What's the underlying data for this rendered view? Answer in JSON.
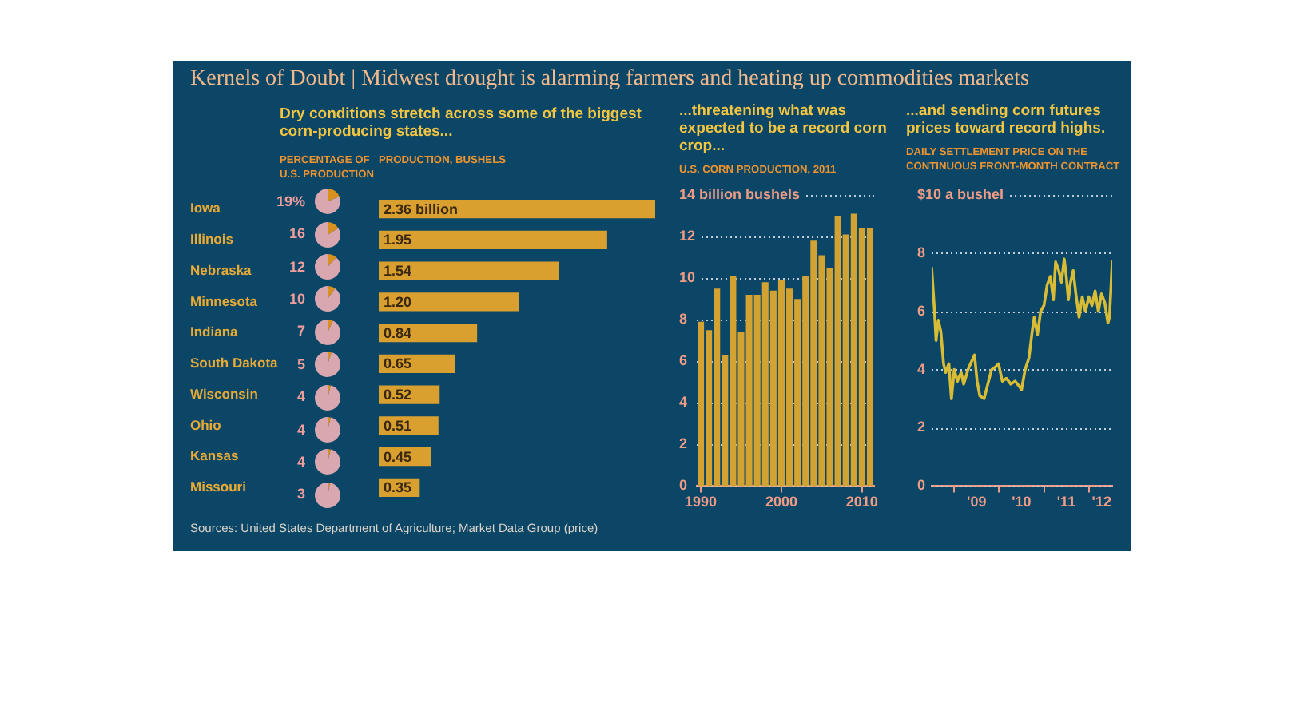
{
  "chart_data": [
    {
      "type": "bar",
      "orientation": "horizontal",
      "title": "Kernels of Doubt | Midwest drought is alarming farmers and heating up commodities markets",
      "subtitle": "Dry conditions stretch across some of the biggest corn-producing states...",
      "xlabel": "PRODUCTION, BUSHELS",
      "categories": [
        "Iowa",
        "Illinois",
        "Nebraska",
        "Minnesota",
        "Indiana",
        "South Dakota",
        "Wisconsin",
        "Ohio",
        "Kansas",
        "Missouri"
      ],
      "values": [
        2.36,
        1.95,
        1.54,
        1.2,
        0.84,
        0.65,
        0.52,
        0.51,
        0.45,
        0.35
      ],
      "value_labels": [
        "2.36 billion",
        "1.95",
        "1.54",
        "1.20",
        "0.84",
        "0.65",
        "0.52",
        "0.51",
        "0.45",
        "0.35"
      ],
      "color": "#d9a030",
      "annotations": [
        "Sources: United States Department of Agriculture; Market Data Group (price)"
      ]
    },
    {
      "type": "other",
      "xlabel": "PERCENTAGE OF U.S. PRODUCTION",
      "values": [
        19,
        16,
        12,
        10,
        7,
        5,
        4,
        4,
        4,
        3
      ],
      "value_labels": [
        "19%",
        "16",
        "12",
        "10",
        "7",
        "5",
        "4",
        "4",
        "4",
        "3"
      ],
      "color": "#d8901e"
    },
    {
      "type": "bar",
      "title": "...threatening what was expected to be a record corn crop...",
      "subtitle": "U.S. CORN PRODUCTION, 2011",
      "categories": [
        "1990",
        null,
        null,
        null,
        null,
        null,
        null,
        null,
        null,
        null,
        "2000",
        null,
        null,
        null,
        null,
        null,
        null,
        null,
        null,
        null,
        "2010",
        null
      ],
      "values": [
        7.9,
        7.5,
        9.5,
        6.3,
        10.1,
        7.4,
        9.2,
        9.2,
        9.8,
        9.4,
        9.9,
        9.5,
        9.0,
        10.1,
        11.8,
        11.1,
        10.5,
        13.0,
        12.1,
        13.1,
        12.4,
        12.4
      ],
      "color": "#d2a232",
      "ylim": [
        0,
        14
      ],
      "yticks": [
        0,
        2,
        4,
        6,
        8,
        10,
        12,
        {
          "value": 14,
          "label": "14 billion bushels"
        }
      ],
      "grid": "y"
    },
    {
      "type": "line",
      "title": "...and sending corn futures prices toward record highs.",
      "subtitle": "DAILY SETTLEMENT PRICE ON THE CONTINUOUS FRONT-MONTH CONTRACT",
      "x": [
        "2008-07-01",
        "2008-07-23",
        "2008-08-06",
        "2008-08-24",
        "2008-09-14",
        "2008-10-06",
        "2008-10-23",
        "2008-11-18",
        "2008-12-09",
        "2009-01-01",
        "2009-01-27",
        "2009-02-26",
        "2009-03-19",
        "2009-04-23",
        "2009-05-24",
        "2009-06-15",
        "2009-07-06",
        "2009-07-28",
        "2009-09-01",
        "2009-10-01",
        "2009-11-01",
        "2009-12-06",
        "2009-12-27",
        "2010-01-27",
        "2010-03-02",
        "2010-04-06",
        "2010-05-11",
        "2010-06-19",
        "2010-07-02",
        "2010-08-01",
        "2010-09-01",
        "2010-09-27",
        "2010-10-14",
        "2010-11-09",
        "2010-12-05",
        "2011-01-01",
        "2011-01-27",
        "2011-02-22",
        "2011-03-19",
        "2011-04-06",
        "2011-05-02",
        "2011-05-24",
        "2011-06-15",
        "2011-07-02",
        "2011-07-19",
        "2011-08-06",
        "2011-08-27",
        "2011-09-18",
        "2011-10-14",
        "2011-11-09",
        "2011-12-05",
        "2012-01-01",
        "2012-01-27",
        "2012-02-22",
        "2012-03-19",
        "2012-04-14",
        "2012-05-10",
        "2012-06-05",
        "2012-06-18",
        "2012-07-10"
      ],
      "values": [
        7.5,
        6.1,
        5.0,
        5.7,
        5.3,
        4.2,
        3.9,
        4.2,
        3.0,
        4.0,
        3.6,
        3.9,
        3.5,
        4.0,
        4.3,
        4.5,
        3.6,
        3.1,
        3.0,
        3.5,
        4.0,
        4.1,
        4.2,
        3.6,
        3.7,
        3.5,
        3.6,
        3.4,
        3.3,
        4.0,
        4.4,
        5.3,
        5.8,
        5.2,
        6.0,
        6.2,
        6.9,
        7.2,
        6.4,
        7.7,
        7.4,
        7.0,
        7.8,
        7.2,
        6.4,
        7.0,
        7.4,
        6.6,
        5.8,
        6.5,
        6.0,
        6.5,
        6.2,
        6.7,
        6.0,
        6.6,
        6.3,
        5.6,
        5.8,
        7.7
      ],
      "color": "#d9bc35",
      "marker": "none",
      "xlim": [
        "2008-07-01",
        "2012-07-10"
      ],
      "xticks": [
        {
          "value": "2009-01-01",
          "label": null
        },
        {
          "value": "2009-07-02",
          "label": "'09"
        },
        {
          "value": "2010-01-01",
          "label": null
        },
        {
          "value": "2010-07-02",
          "label": "'10"
        },
        {
          "value": "2011-01-01",
          "label": null
        },
        {
          "value": "2011-07-02",
          "label": "'11"
        },
        {
          "value": "2012-01-01",
          "label": null
        },
        {
          "value": "2012-04-15",
          "label": "'12"
        }
      ],
      "ylim": [
        0,
        10
      ],
      "yticks": [
        0,
        2,
        4,
        6,
        8,
        {
          "value": 10,
          "label": "$10 a bushel"
        }
      ],
      "grid": "y"
    }
  ]
}
